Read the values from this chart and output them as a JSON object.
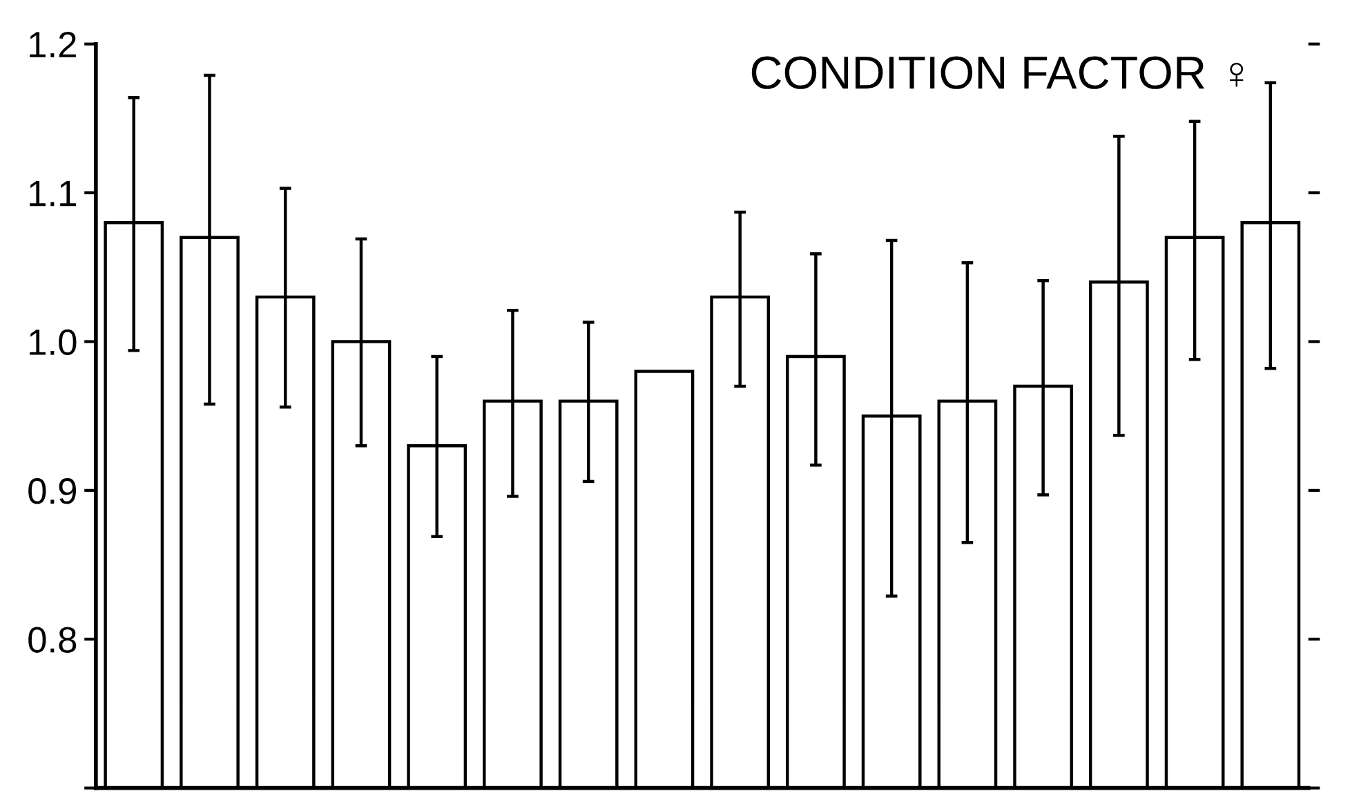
{
  "chart_data": {
    "type": "bar",
    "title": "CONDITION FACTOR ♀",
    "categories": [
      null,
      null,
      null,
      null,
      null,
      null,
      null,
      null,
      null,
      null,
      null,
      null,
      null,
      null,
      null,
      null
    ],
    "values": [
      1.08,
      1.07,
      1.03,
      1.0,
      0.93,
      0.96,
      0.96,
      0.98,
      1.03,
      0.99,
      0.95,
      0.96,
      0.97,
      1.04,
      1.07,
      1.08
    ],
    "errors": [
      [
        0.994,
        1.164
      ],
      [
        0.958,
        1.179
      ],
      [
        0.956,
        1.103
      ],
      [
        0.93,
        1.069
      ],
      [
        0.869,
        0.99
      ],
      [
        0.896,
        1.021
      ],
      [
        0.906,
        1.013
      ],
      null,
      [
        0.97,
        1.087
      ],
      [
        0.917,
        1.059
      ],
      [
        0.829,
        1.068
      ],
      [
        0.865,
        1.053
      ],
      [
        0.897,
        1.041
      ],
      [
        0.937,
        1.138
      ],
      [
        0.988,
        1.148
      ],
      [
        0.982,
        1.174
      ]
    ],
    "color": "#ffffff",
    "ylim": [
      0.7,
      1.2
    ],
    "yticks": [
      {
        "value": 0.7,
        "label": null
      },
      0.8,
      0.9,
      {
        "value": 1.0,
        "label": "1.0"
      },
      1.1,
      1.2
    ],
    "grid": false
  }
}
